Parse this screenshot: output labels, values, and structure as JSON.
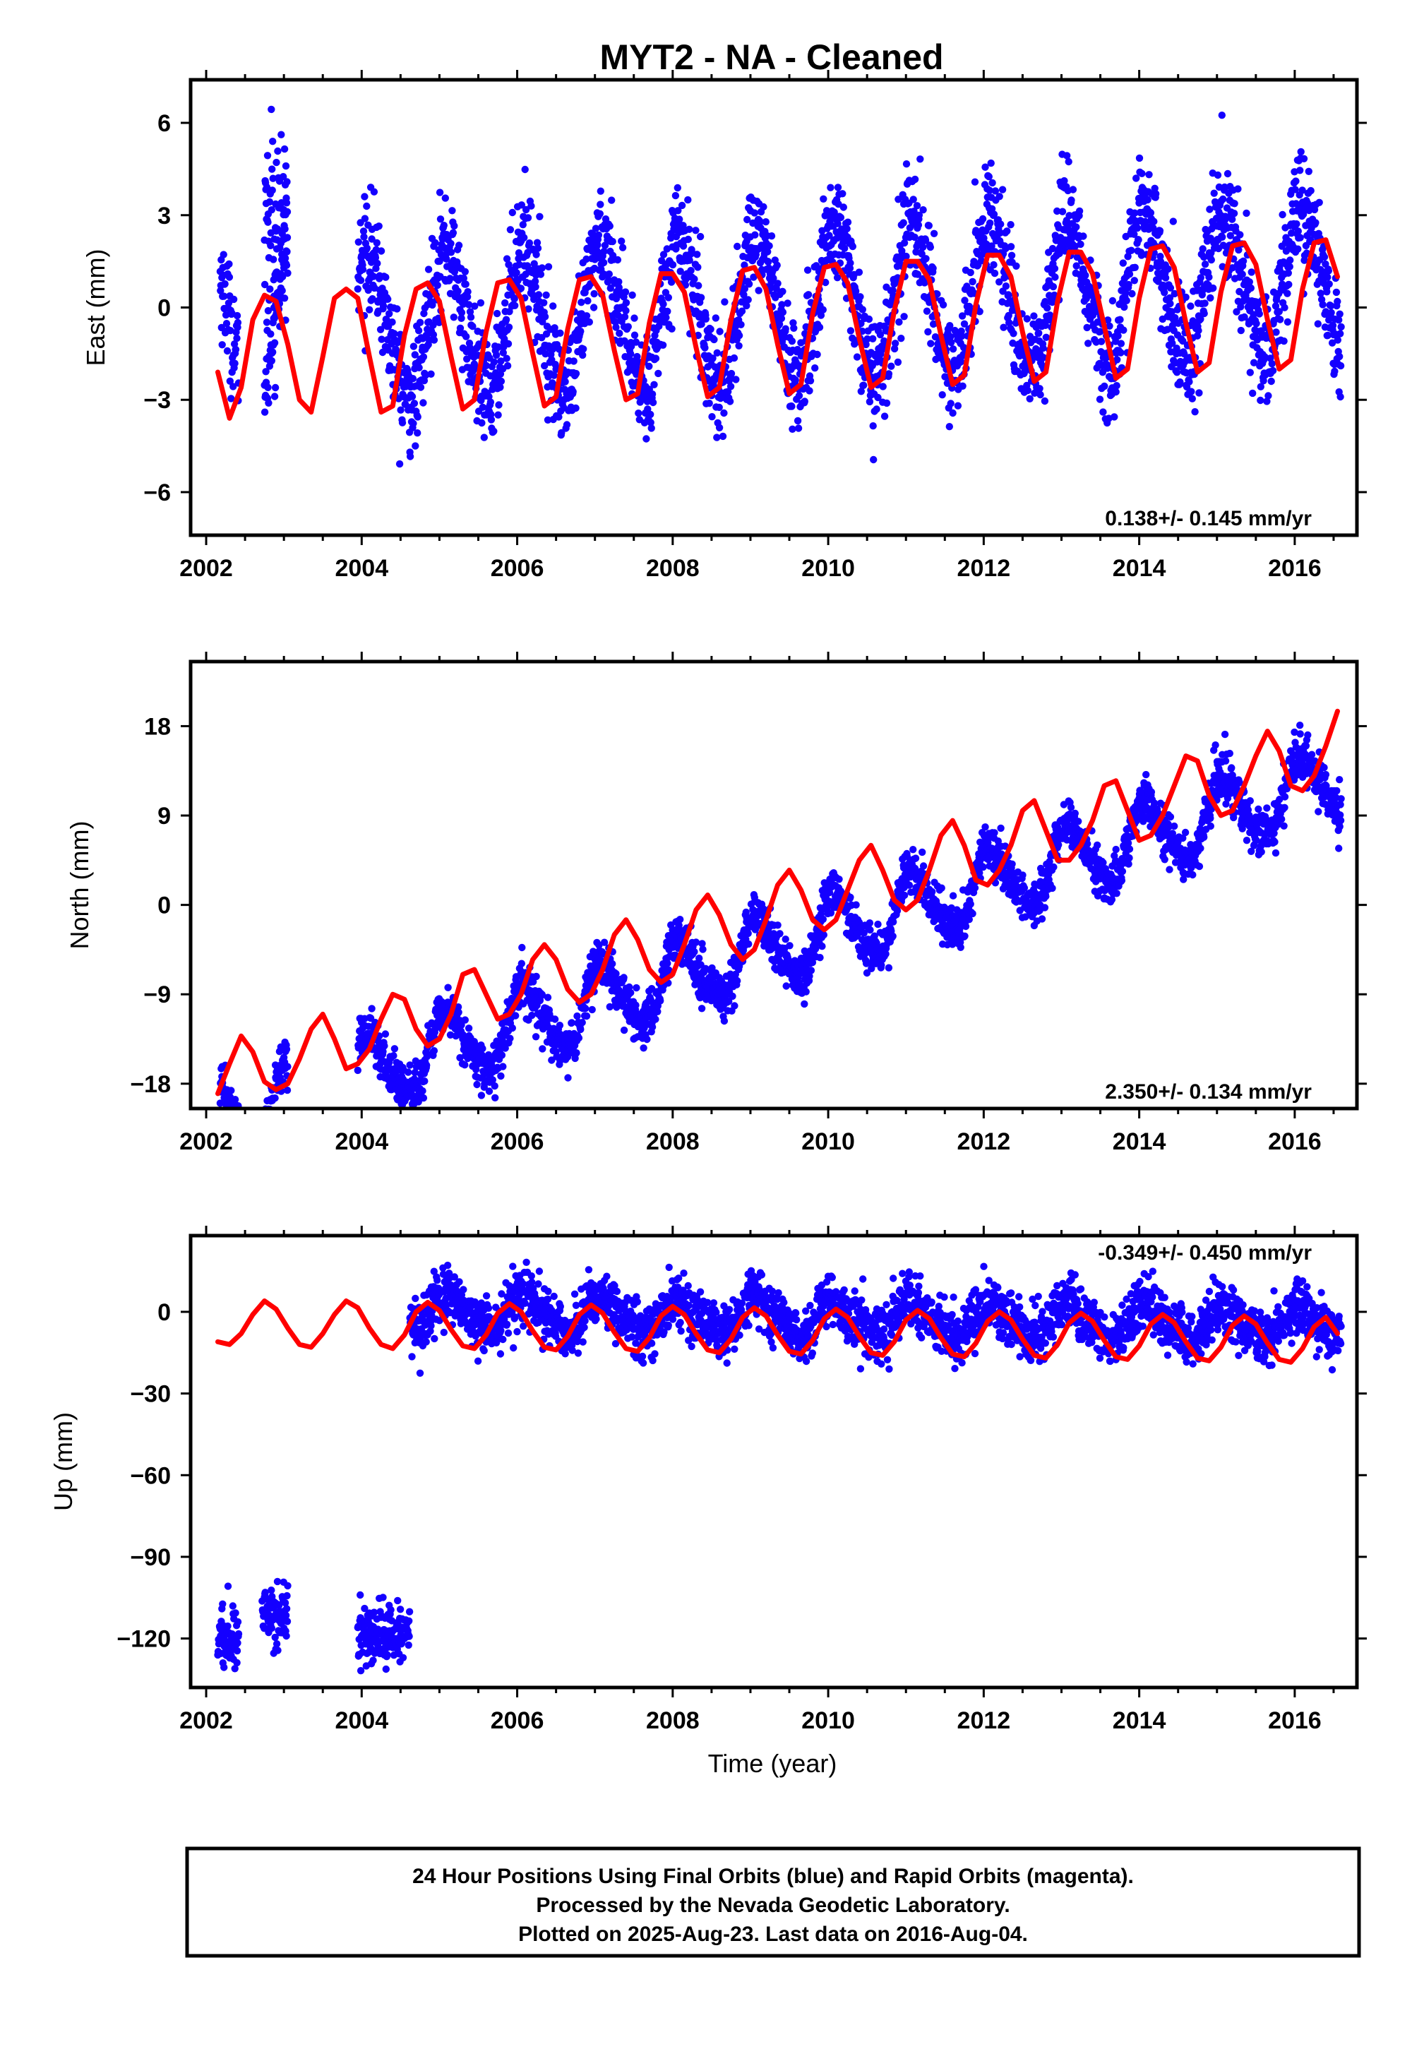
{
  "title": "MYT2  - NA - Cleaned",
  "colors": {
    "points": "#1400ff",
    "fit": "#ff0000",
    "frame": "#000000"
  },
  "chart_data": [
    {
      "type": "scatter",
      "id": "east",
      "ylabel": "East (mm)",
      "xlabel": "",
      "xlim": [
        2001.8,
        2016.8
      ],
      "ylim": [
        -7.4,
        7.4
      ],
      "xticks": [
        2002,
        2004,
        2006,
        2008,
        2010,
        2012,
        2014,
        2016
      ],
      "yticks": [
        -6,
        -3,
        0,
        3,
        6
      ],
      "ytick_labels": [
        "−6",
        "−3",
        "0",
        "3",
        "6"
      ],
      "rate": "0.138+/- 0.145 mm/yr",
      "rate_position": "bottom-right",
      "series": [
        {
          "kind": "points",
          "segments": [
            {
              "t0": 2002.18,
              "t1": 2002.42
            },
            {
              "t0": 2002.75,
              "t1": 2003.05
            },
            {
              "t0": 2003.95,
              "t1": 2016.6
            }
          ],
          "offset": 0.0,
          "trend": 0.138,
          "annual": 2.4,
          "semi": 0.2,
          "noise": 0.9,
          "special": [
            {
              "t0": 2002.75,
              "t1": 2003.05,
              "mean": 3.0,
              "noise": 1.4
            }
          ]
        },
        {
          "kind": "fit",
          "x": [
            2002.15,
            2002.3,
            2002.45,
            2002.6,
            2002.75,
            2002.9,
            2003.05,
            2003.2,
            2003.35,
            2003.5,
            2003.65,
            2003.8,
            2003.95,
            2004.1,
            2004.25,
            2004.4,
            2004.55,
            2004.7,
            2004.85,
            2005.0,
            2005.15,
            2005.3,
            2005.45,
            2005.6,
            2005.75,
            2005.9,
            2006.05,
            2006.2,
            2006.35,
            2006.5,
            2006.65,
            2006.8,
            2006.95,
            2007.1,
            2007.25,
            2007.4,
            2007.55,
            2007.7,
            2007.85,
            2008.0,
            2008.15,
            2008.3,
            2008.45,
            2008.6,
            2008.75,
            2008.9,
            2009.05,
            2009.2,
            2009.35,
            2009.5,
            2009.65,
            2009.8,
            2009.95,
            2010.1,
            2010.25,
            2010.4,
            2010.55,
            2010.7,
            2010.85,
            2011.0,
            2011.15,
            2011.3,
            2011.45,
            2011.6,
            2011.75,
            2011.9,
            2012.05,
            2012.2,
            2012.35,
            2012.5,
            2012.65,
            2012.8,
            2012.95,
            2013.1,
            2013.25,
            2013.4,
            2013.55,
            2013.7,
            2013.85,
            2014.0,
            2014.15,
            2014.3,
            2014.45,
            2014.6,
            2014.75,
            2014.9,
            2015.05,
            2015.2,
            2015.35,
            2015.5,
            2015.65,
            2015.8,
            2015.95,
            2016.1,
            2016.25,
            2016.4,
            2016.55
          ],
          "y": [
            -2.1,
            -3.6,
            -2.6,
            -0.4,
            0.4,
            0.2,
            -1.2,
            -3.0,
            -3.4,
            -1.6,
            0.3,
            0.6,
            0.3,
            -1.6,
            -3.4,
            -3.2,
            -0.9,
            0.6,
            0.8,
            0.2,
            -1.6,
            -3.3,
            -3.0,
            -0.8,
            0.8,
            0.9,
            0.3,
            -1.5,
            -3.2,
            -2.9,
            -0.7,
            0.9,
            1.0,
            0.4,
            -1.4,
            -3.0,
            -2.8,
            -0.5,
            1.1,
            1.1,
            0.5,
            -1.3,
            -2.9,
            -2.6,
            -0.4,
            1.2,
            1.3,
            0.6,
            -1.2,
            -2.8,
            -2.5,
            -0.2,
            1.3,
            1.4,
            0.8,
            -1.0,
            -2.6,
            -2.3,
            -0.1,
            1.5,
            1.5,
            0.9,
            -0.9,
            -2.5,
            -2.2,
            0.1,
            1.7,
            1.7,
            1.0,
            -0.8,
            -2.4,
            -2.1,
            0.2,
            1.8,
            1.8,
            1.1,
            -0.6,
            -2.3,
            -2.0,
            0.3,
            1.9,
            2.0,
            1.3,
            -0.5,
            -2.1,
            -1.8,
            0.5,
            2.0,
            2.1,
            1.4,
            -0.4,
            -2.0,
            -1.7,
            0.6,
            2.1,
            2.2,
            1.0
          ]
        }
      ]
    },
    {
      "type": "scatter",
      "id": "north",
      "ylabel": "North (mm)",
      "xlabel": "",
      "xlim": [
        2001.8,
        2016.8
      ],
      "ylim": [
        -20.5,
        24.5
      ],
      "xticks": [
        2002,
        2004,
        2006,
        2008,
        2010,
        2012,
        2014,
        2016
      ],
      "yticks": [
        -18,
        -9,
        0,
        9,
        18
      ],
      "ytick_labels": [
        "−18",
        "−9",
        "0",
        "9",
        "18"
      ],
      "rate": "2.350+/- 0.134 mm/yr",
      "rate_position": "bottom-right",
      "series": [
        {
          "kind": "points",
          "segments": [
            {
              "t0": 2002.18,
              "t1": 2002.42
            },
            {
              "t0": 2002.75,
              "t1": 2003.05
            },
            {
              "t0": 2003.95,
              "t1": 2016.6
            }
          ],
          "offset": -4.7,
          "trend": 2.35,
          "annual": 3.5,
          "semi": 0.6,
          "noise": 1.2,
          "special": []
        },
        {
          "kind": "fit",
          "x": [
            2002.15,
            2002.3,
            2002.45,
            2002.6,
            2002.75,
            2002.9,
            2003.05,
            2003.2,
            2003.35,
            2003.5,
            2003.65,
            2003.8,
            2003.95,
            2004.1,
            2004.25,
            2004.4,
            2004.55,
            2004.7,
            2004.85,
            2005.0,
            2005.15,
            2005.3,
            2005.45,
            2005.6,
            2005.75,
            2005.9,
            2006.05,
            2006.2,
            2006.35,
            2006.5,
            2006.65,
            2006.8,
            2006.95,
            2007.1,
            2007.25,
            2007.4,
            2007.55,
            2007.7,
            2007.85,
            2008.0,
            2008.15,
            2008.3,
            2008.45,
            2008.6,
            2008.75,
            2008.9,
            2009.05,
            2009.2,
            2009.35,
            2009.5,
            2009.65,
            2009.8,
            2009.95,
            2010.1,
            2010.25,
            2010.4,
            2010.55,
            2010.7,
            2010.85,
            2011.0,
            2011.15,
            2011.3,
            2011.45,
            2011.6,
            2011.75,
            2011.9,
            2012.05,
            2012.2,
            2012.35,
            2012.5,
            2012.65,
            2012.8,
            2012.95,
            2013.1,
            2013.25,
            2013.4,
            2013.55,
            2013.7,
            2013.85,
            2014.0,
            2014.15,
            2014.3,
            2014.45,
            2014.6,
            2014.75,
            2014.9,
            2015.05,
            2015.2,
            2015.35,
            2015.5,
            2015.65,
            2015.8,
            2015.95,
            2016.1,
            2016.25,
            2016.4,
            2016.55
          ],
          "y": [
            -19.0,
            -16.0,
            -13.2,
            -14.8,
            -17.8,
            -18.6,
            -18.0,
            -15.5,
            -12.5,
            -11.0,
            -13.5,
            -16.5,
            -16.0,
            -14.5,
            -11.5,
            -9.0,
            -9.5,
            -12.5,
            -14.2,
            -13.5,
            -11.0,
            -7.0,
            -6.5,
            -9.0,
            -11.5,
            -11.0,
            -9.0,
            -5.5,
            -4.0,
            -5.5,
            -8.5,
            -9.8,
            -9.0,
            -6.5,
            -3.0,
            -1.5,
            -3.5,
            -6.5,
            -7.8,
            -7.0,
            -4.0,
            -0.5,
            1.0,
            -1.0,
            -4.0,
            -5.5,
            -4.5,
            -1.5,
            2.0,
            3.5,
            1.5,
            -1.5,
            -2.5,
            -1.5,
            1.5,
            4.5,
            6.0,
            3.5,
            0.5,
            -0.5,
            0.5,
            3.5,
            7.0,
            8.5,
            6.0,
            2.5,
            2.0,
            3.5,
            6.0,
            9.5,
            10.5,
            7.5,
            4.5,
            4.5,
            6.0,
            8.5,
            12.0,
            12.5,
            9.5,
            6.5,
            7.0,
            9.0,
            12.0,
            15.0,
            14.5,
            11.0,
            9.0,
            9.5,
            12.0,
            15.0,
            17.5,
            15.5,
            12.0,
            11.5,
            13.0,
            16.0,
            19.5
          ]
        }
      ]
    },
    {
      "type": "scatter",
      "id": "up",
      "ylabel": "Up (mm)",
      "xlabel": "Time (year)",
      "xlim": [
        2001.8,
        2016.8
      ],
      "ylim": [
        -138,
        28
      ],
      "xticks": [
        2002,
        2004,
        2006,
        2008,
        2010,
        2012,
        2014,
        2016
      ],
      "yticks": [
        -120,
        -90,
        -60,
        -30,
        0
      ],
      "ytick_labels": [
        "−120",
        "−90",
        "−60",
        "−30",
        "0"
      ],
      "rate": "-0.349+/- 0.450 mm/yr",
      "rate_position": "top-right",
      "series": [
        {
          "kind": "points",
          "segments": [
            {
              "t0": 2004.62,
              "t1": 2016.6
            }
          ],
          "offset": -2.0,
          "trend": -0.349,
          "annual": 6.0,
          "semi": 1.0,
          "noise": 5.0,
          "special": [
            {
              "t0": 2002.15,
              "t1": 2002.42,
              "mean": -120,
              "noise": 6.0
            },
            {
              "t0": 2002.72,
              "t1": 2003.05,
              "mean": -110,
              "noise": 6.0
            },
            {
              "t0": 2003.95,
              "t1": 2004.62,
              "mean": -118,
              "noise": 5.5
            }
          ]
        },
        {
          "kind": "fit",
          "x": [
            2002.15,
            2002.3,
            2002.45,
            2002.6,
            2002.75,
            2002.9,
            2003.05,
            2003.2,
            2003.35,
            2003.5,
            2003.65,
            2003.8,
            2003.95,
            2004.1,
            2004.25,
            2004.4,
            2004.55,
            2004.7,
            2004.85,
            2005.0,
            2005.15,
            2005.3,
            2005.45,
            2005.6,
            2005.75,
            2005.9,
            2006.05,
            2006.2,
            2006.35,
            2006.5,
            2006.65,
            2006.8,
            2006.95,
            2007.1,
            2007.25,
            2007.4,
            2007.55,
            2007.7,
            2007.85,
            2008.0,
            2008.15,
            2008.3,
            2008.45,
            2008.6,
            2008.75,
            2008.9,
            2009.05,
            2009.2,
            2009.35,
            2009.5,
            2009.65,
            2009.8,
            2009.95,
            2010.1,
            2010.25,
            2010.4,
            2010.55,
            2010.7,
            2010.85,
            2011.0,
            2011.15,
            2011.3,
            2011.45,
            2011.6,
            2011.75,
            2011.9,
            2012.05,
            2012.2,
            2012.35,
            2012.5,
            2012.65,
            2012.8,
            2012.95,
            2013.1,
            2013.25,
            2013.4,
            2013.55,
            2013.7,
            2013.85,
            2014.0,
            2014.15,
            2014.3,
            2014.45,
            2014.6,
            2014.75,
            2014.9,
            2015.05,
            2015.2,
            2015.35,
            2015.5,
            2015.65,
            2015.8,
            2015.95,
            2016.1,
            2016.25,
            2016.4,
            2016.55
          ],
          "y": [
            -11.0,
            -12.0,
            -8.0,
            -1.0,
            4.0,
            1.0,
            -6.0,
            -12.0,
            -13.0,
            -8.0,
            -1.0,
            4.0,
            1.5,
            -6.0,
            -12.0,
            -13.5,
            -8.5,
            0.0,
            3.5,
            0.5,
            -6.5,
            -12.5,
            -13.5,
            -8.5,
            -0.5,
            3.0,
            0.0,
            -7.0,
            -13.0,
            -14.0,
            -9.0,
            -1.0,
            2.5,
            -0.5,
            -7.5,
            -13.5,
            -14.5,
            -9.5,
            -1.5,
            2.0,
            -1.0,
            -8.0,
            -14.0,
            -15.0,
            -10.0,
            -2.0,
            1.5,
            -1.5,
            -8.5,
            -14.5,
            -15.5,
            -10.5,
            -2.5,
            1.0,
            -2.0,
            -9.0,
            -15.0,
            -16.0,
            -11.0,
            -3.0,
            0.5,
            -2.5,
            -9.5,
            -15.5,
            -16.5,
            -11.5,
            -3.5,
            0.0,
            -3.0,
            -10.0,
            -16.0,
            -17.0,
            -12.0,
            -4.0,
            -0.5,
            -3.5,
            -10.5,
            -16.5,
            -17.5,
            -12.5,
            -4.5,
            -1.0,
            -4.0,
            -11.0,
            -17.0,
            -18.0,
            -13.0,
            -5.0,
            -1.5,
            -4.5,
            -11.5,
            -17.5,
            -18.5,
            -13.5,
            -5.5,
            -2.0,
            -8.0
          ]
        }
      ]
    }
  ],
  "footer": {
    "line1": "24 Hour Positions Using Final Orbits (blue) and Rapid Orbits (magenta).",
    "line2": "Processed by the Nevada Geodetic Laboratory.",
    "line3": "Plotted on 2025-Aug-23. Last data on 2016-Aug-04."
  }
}
